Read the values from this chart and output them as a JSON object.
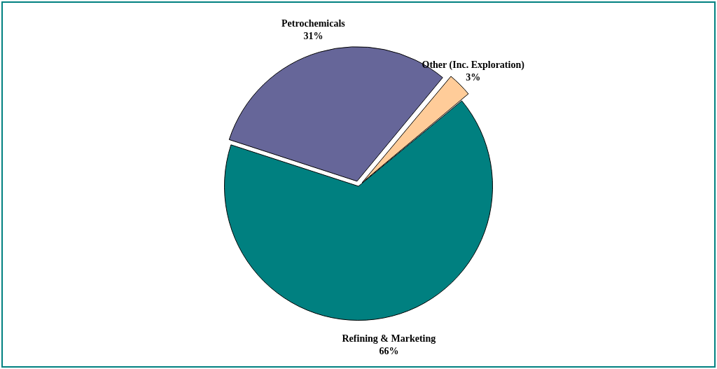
{
  "chart_data": {
    "type": "pie",
    "categories": [
      "Petrochemicals",
      "Other (Inc. Exploration)",
      "Refining & Marketing"
    ],
    "values": [
      31,
      3,
      66
    ],
    "colors": [
      "#666699",
      "#ffcc99",
      "#008080"
    ],
    "value_labels": [
      "31%",
      "3%",
      "66%"
    ],
    "legend": false
  }
}
